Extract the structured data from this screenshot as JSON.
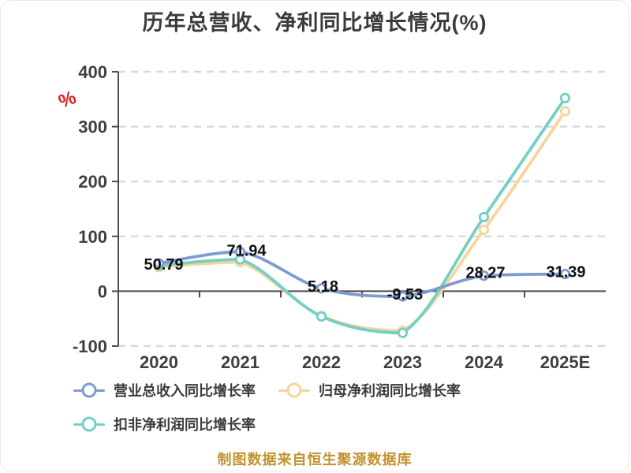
{
  "title": "历年总营收、净利同比增长情况(%)",
  "y_axis_unit": "%",
  "caption": "制图数据来自恒生聚源数据库",
  "colors": {
    "revenue": "#7e9bd1",
    "net_profit": "#f6d49c",
    "non_gaap": "#74cfc6",
    "axis": "#4c4c4c",
    "grid": "#d8d8d8",
    "title_text": "#3b3b3b",
    "tick_text": "#3f3f3f",
    "legend_text": "#3b3b3b",
    "data_label_text": "#111111",
    "caption_text": "#c3922e",
    "unit_symbol": "#e01f1f",
    "marker_fill": "#ffffff"
  },
  "chart_data": {
    "type": "line",
    "categories": [
      "2020",
      "2021",
      "2022",
      "2023",
      "2024",
      "2025E"
    ],
    "ylim": [
      -100,
      400
    ],
    "ytick_step": 100,
    "ytick_labels": [
      "400",
      "300",
      "200",
      "100",
      "0",
      "-100"
    ],
    "grid": "dashed-horizontal",
    "legend_position": "bottom-left",
    "series": [
      {
        "key": "revenue",
        "name": "营业总收入同比增长率",
        "values": [
          50.79,
          71.94,
          5.18,
          -9.53,
          28.27,
          31.39
        ],
        "point_labels": [
          "50.79",
          "71.94",
          "5.18",
          "-9.53",
          "28.27",
          "31.39"
        ]
      },
      {
        "key": "net_profit",
        "name": "归母净利润同比增长率",
        "values": [
          44,
          53,
          -45,
          -72,
          112,
          328
        ],
        "point_labels": null
      },
      {
        "key": "non_gaap",
        "name": "扣非净利润同比增长率",
        "values": [
          47,
          58,
          -46,
          -76,
          135,
          352
        ],
        "point_labels": null
      }
    ],
    "legend": [
      {
        "key": "revenue",
        "label": "营业总收入同比增长率"
      },
      {
        "key": "net_profit",
        "label": "归母净利润同比增长率"
      },
      {
        "key": "non_gaap",
        "label": "扣非净利润同比增长率"
      }
    ]
  }
}
